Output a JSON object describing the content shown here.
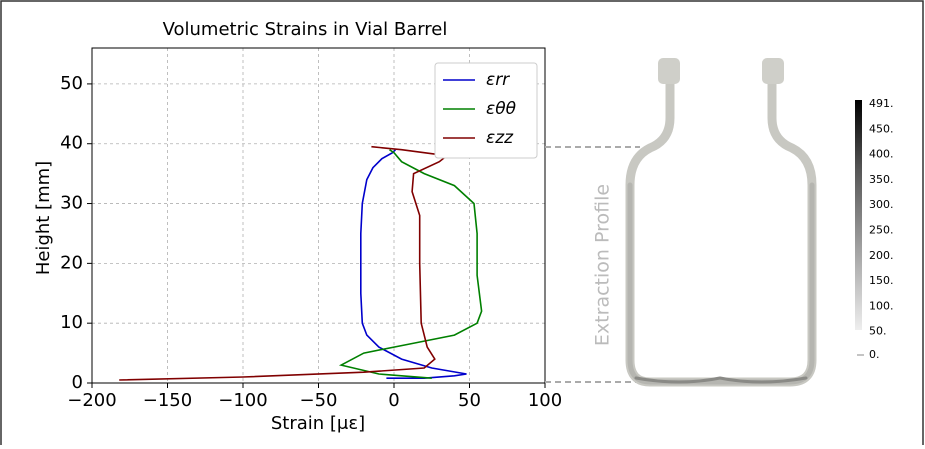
{
  "chart_data": {
    "type": "line",
    "title": "Volumetric Strains in Vial Barrel",
    "xlabel": "Strain [με]",
    "ylabel": "Height [mm]",
    "xlim": [
      -200,
      100
    ],
    "xticks": [
      {
        "value": -200,
        "label": "−200"
      },
      {
        "value": -150,
        "label": "−150"
      },
      {
        "value": -100,
        "label": "−100"
      },
      {
        "value": -50,
        "label": "−50"
      },
      0,
      50,
      100
    ],
    "ylim": [
      0,
      55
    ],
    "yticks": [
      0,
      10,
      20,
      30,
      40,
      50
    ],
    "grid": true,
    "legend": "upper right",
    "series": [
      {
        "name": "εrr",
        "color": "#0000cc",
        "x": [
          -5,
          20,
          40,
          48,
          25,
          5,
          -10,
          -18,
          -21,
          -22,
          -22,
          -22,
          -21,
          -18,
          -14,
          -8,
          -1,
          1
        ],
        "y": [
          0.8,
          0.8,
          1.2,
          1.5,
          2.5,
          4,
          6,
          8,
          10,
          15,
          20,
          25,
          30,
          34,
          36,
          37.5,
          38.5,
          39
        ]
      },
      {
        "name": "εθθ",
        "color": "#008000",
        "x": [
          25,
          -10,
          -35,
          -20,
          10,
          40,
          55,
          58,
          55,
          55,
          53,
          40,
          20,
          5,
          0,
          -3
        ],
        "y": [
          0.8,
          1.5,
          3,
          5,
          6.5,
          8,
          10,
          12,
          18,
          25,
          30,
          33,
          35,
          37,
          38.5,
          39
        ]
      },
      {
        "name": "εzz",
        "color": "#800000",
        "x": [
          -182,
          -100,
          -20,
          20,
          27,
          22,
          18,
          17,
          17,
          12,
          13,
          30,
          35,
          20,
          5,
          -15
        ],
        "y": [
          0.5,
          1,
          1.8,
          2.5,
          4,
          6,
          10,
          20,
          28,
          32,
          35,
          37,
          38,
          38.5,
          39,
          39.5
        ]
      }
    ]
  },
  "figure": {
    "annotation": "Extraction Profile",
    "colorbar_labels": [
      "491.",
      "450.",
      "400.",
      "350.",
      "300.",
      "250.",
      "200.",
      "150.",
      "100.",
      "50.",
      "0."
    ]
  }
}
